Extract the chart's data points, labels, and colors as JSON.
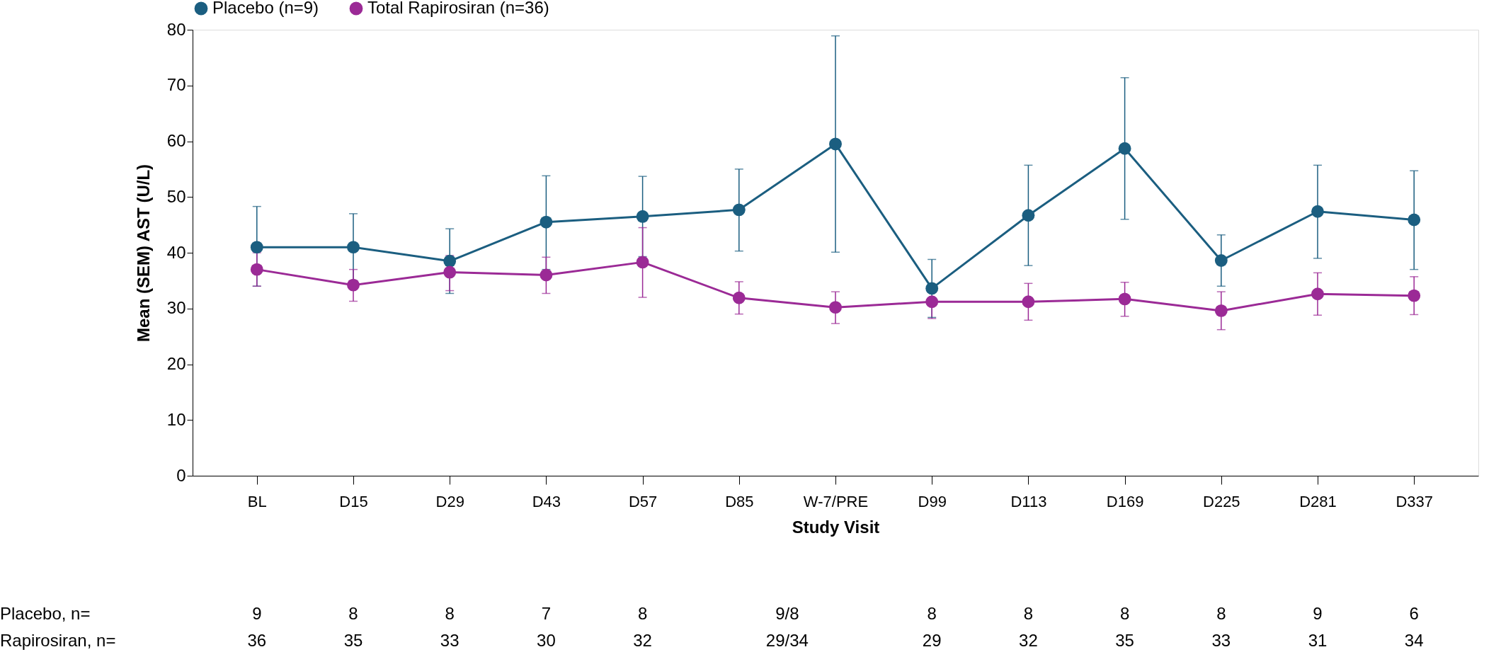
{
  "chart_data": {
    "type": "line",
    "xlabel": "Study Visit",
    "ylabel": "Mean (SEM) AST (U/L)",
    "categories": [
      "BL",
      "D15",
      "D29",
      "D43",
      "D57",
      "D85",
      "W-7/PRE",
      "D99",
      "D113",
      "D169",
      "D225",
      "D281",
      "D337"
    ],
    "series": [
      {
        "name": "Placebo (n=9)",
        "color": "#1b5e80",
        "values": [
          41,
          41,
          38.5,
          45.5,
          46.5,
          47.7,
          59.5,
          33.6,
          46.7,
          58.7,
          38.6,
          47.4,
          45.9
        ],
        "errors": [
          [
            34,
            48.3
          ],
          [
            35,
            47
          ],
          [
            32.7,
            44.3
          ],
          [
            37,
            53.8
          ],
          [
            39.3,
            53.7
          ],
          [
            40.3,
            55
          ],
          [
            40.1,
            78.9
          ],
          [
            28.4,
            38.8
          ],
          [
            37.7,
            55.7
          ],
          [
            46,
            71.4
          ],
          [
            34,
            43.2
          ],
          [
            39,
            55.7
          ],
          [
            37,
            54.7
          ]
        ]
      },
      {
        "name": "Total Rapirosiran (n=36)",
        "color": "#9b2a96",
        "values": [
          37,
          34.2,
          36.5,
          36,
          38.3,
          31.9,
          30.2,
          31.2,
          31.2,
          31.7,
          29.6,
          32.6,
          32.3
        ],
        "errors": [
          [
            34,
            40
          ],
          [
            31.3,
            37
          ],
          [
            33.2,
            39.5
          ],
          [
            32.7,
            39.2
          ],
          [
            32,
            44.5
          ],
          [
            29,
            34.8
          ],
          [
            27.3,
            33
          ],
          [
            28.2,
            31.2
          ],
          [
            27.9,
            34.5
          ],
          [
            28.6,
            34.7
          ],
          [
            26.2,
            33
          ],
          [
            28.8,
            36.4
          ],
          [
            28.9,
            35.7
          ]
        ]
      }
    ],
    "ylim": [
      0,
      80
    ],
    "yticks": [
      0,
      10,
      20,
      30,
      40,
      50,
      60,
      70,
      80
    ],
    "grid": false,
    "legend": "top",
    "marker": "circle",
    "line_style": "solid",
    "annotations": [
      "Placebo, n=",
      "9",
      "8",
      "8",
      "7",
      "8",
      "9/8",
      "8",
      "8",
      "8",
      "8",
      "9",
      "6",
      "Rapirosiran, n=",
      "36",
      "35",
      "33",
      "30",
      "32",
      "29/34",
      "29",
      "32",
      "35",
      "33",
      "31",
      "34"
    ]
  }
}
